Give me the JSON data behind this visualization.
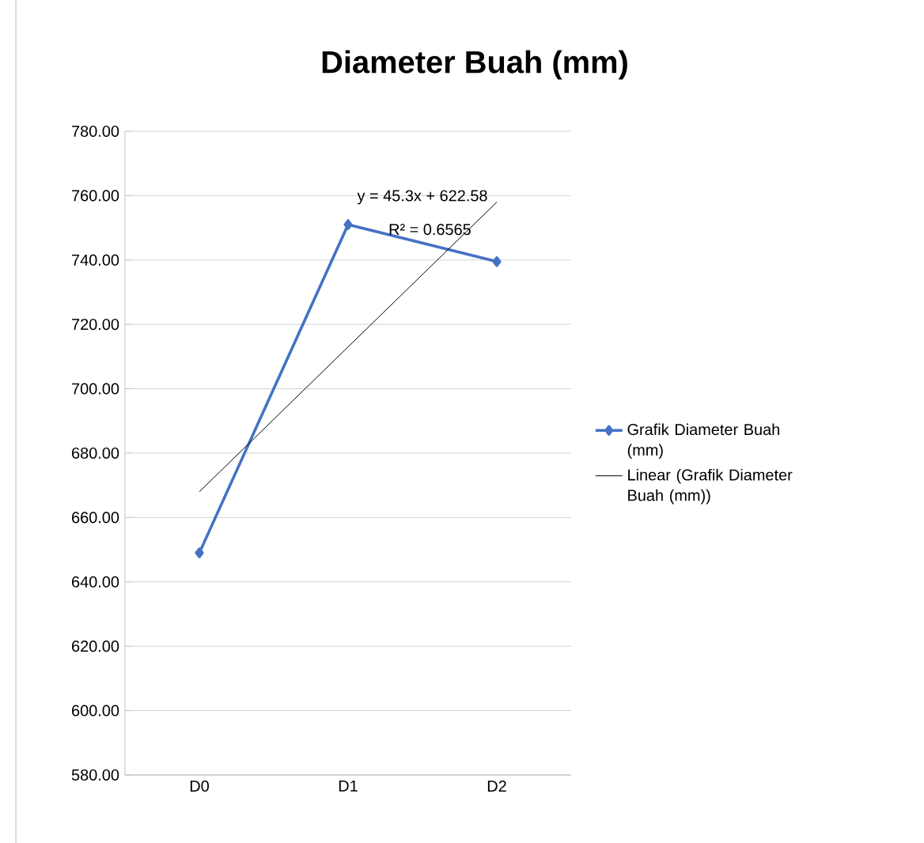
{
  "chart_data": {
    "type": "line",
    "title": "Diameter Buah (mm)",
    "categories": [
      "D0",
      "D1",
      "D2"
    ],
    "series": [
      {
        "name": "Grafik Diameter Buah (mm)",
        "color": "#4472c4",
        "values": [
          649,
          751,
          739.5
        ],
        "marker": "diamond",
        "line_style": "solid"
      },
      {
        "name": "Linear (Grafik Diameter Buah (mm))",
        "color": "#000000",
        "values": [
          668,
          713,
          758
        ],
        "marker": "none",
        "line_style": "solid"
      }
    ],
    "ylim": [
      580,
      780
    ],
    "yticks": [
      {
        "value": 580,
        "label": "580.00"
      },
      {
        "value": 600,
        "label": "600.00"
      },
      {
        "value": 620,
        "label": "620.00"
      },
      {
        "value": 640,
        "label": "640.00"
      },
      {
        "value": 660,
        "label": "660.00"
      },
      {
        "value": 680,
        "label": "680.00"
      },
      {
        "value": 700,
        "label": "700.00"
      },
      {
        "value": 720,
        "label": "720.00"
      },
      {
        "value": 740,
        "label": "740.00"
      },
      {
        "value": 760,
        "label": "760.00"
      },
      {
        "value": 780,
        "label": "780.00"
      }
    ],
    "grid": "y",
    "legend": "right",
    "annotations": [
      "y = 45.3x + 622.58",
      "R² = 0.6565"
    ]
  }
}
